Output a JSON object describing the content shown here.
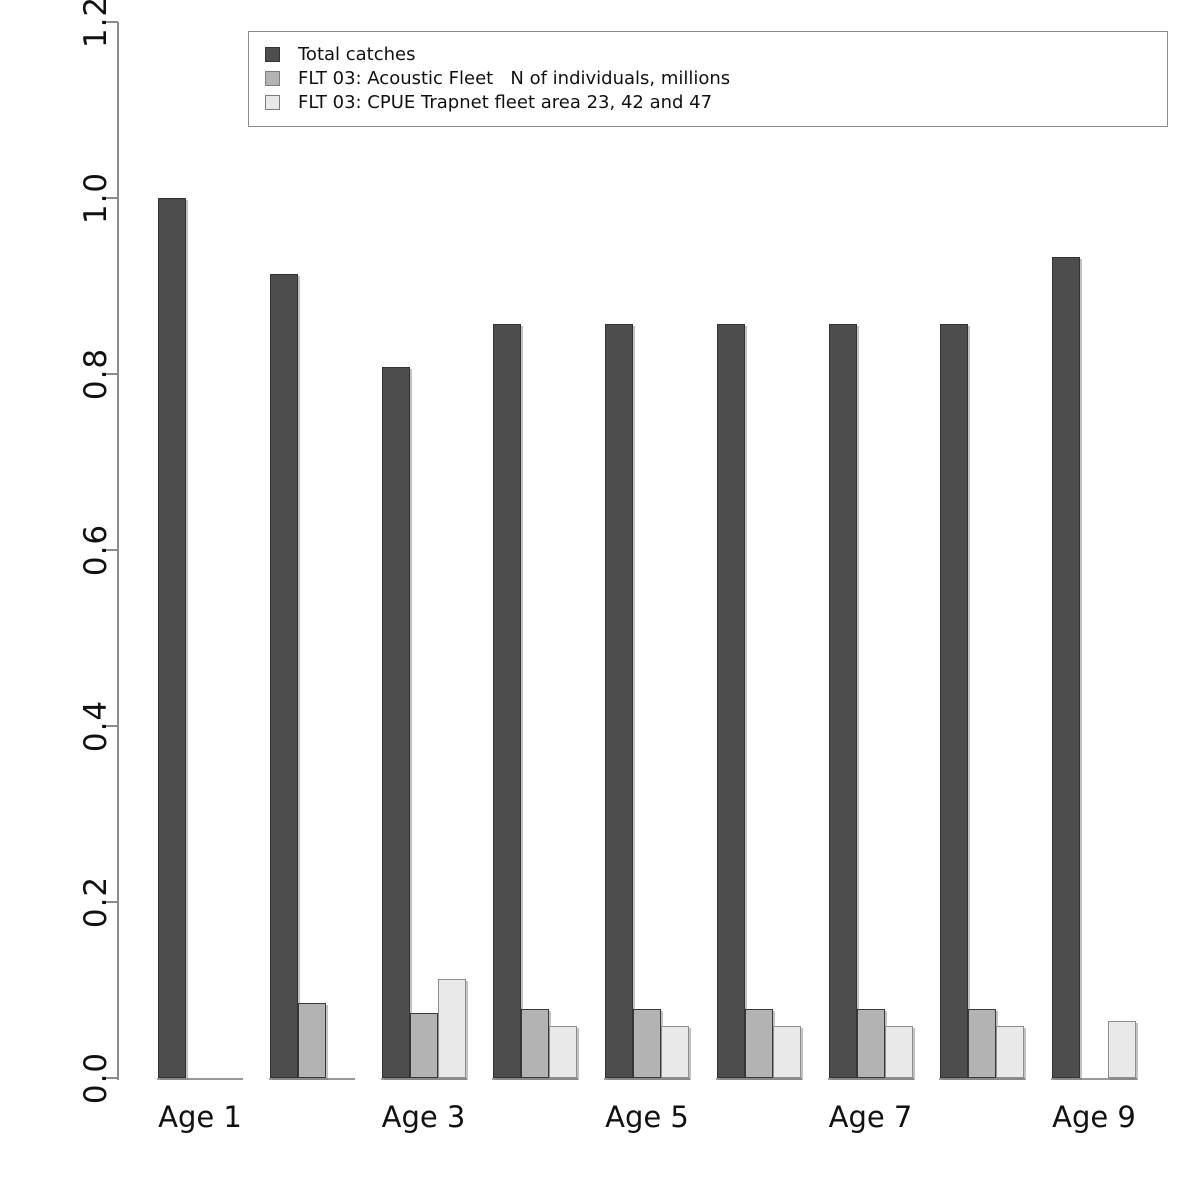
{
  "chart_data": {
    "type": "bar",
    "title": "",
    "xlabel": "",
    "ylabel": "",
    "x_tick_labels": [
      "Age 1",
      "Age 3",
      "Age 5",
      "Age 7",
      "Age 9"
    ],
    "x_tick_group_indices": [
      0,
      2,
      4,
      6,
      8
    ],
    "n_groups": 9,
    "y_ticks": [
      "0.0",
      "0.2",
      "0.4",
      "0.6",
      "0.8",
      "1.0",
      "1.2"
    ],
    "ylim": [
      0,
      1.2
    ],
    "grid": false,
    "legend_position": "top-left-inside",
    "series": [
      {
        "name": "Total catches",
        "color": "#4d4d4d",
        "values": [
          1.0,
          0.914,
          0.808,
          0.857,
          0.857,
          0.857,
          0.857,
          0.857,
          0.933
        ]
      },
      {
        "name": "FLT 03: Acoustic Fleet   N of individuals, millions",
        "color": "#b3b3b3",
        "values": [
          0,
          0.085,
          0.074,
          0.078,
          0.078,
          0.078,
          0.078,
          0.078,
          0
        ]
      },
      {
        "name": "FLT 03: CPUE Trapnet fleet area 23, 42 and 47",
        "color": "#e9e9e9",
        "values": [
          0,
          0,
          0.113,
          0.059,
          0.059,
          0.059,
          0.059,
          0.059,
          0.065
        ]
      }
    ],
    "colors": {
      "axis": "#8c8c8c",
      "tick_text": "#111111",
      "legend_border": "#8c8c8c",
      "background": "#ffffff"
    }
  }
}
